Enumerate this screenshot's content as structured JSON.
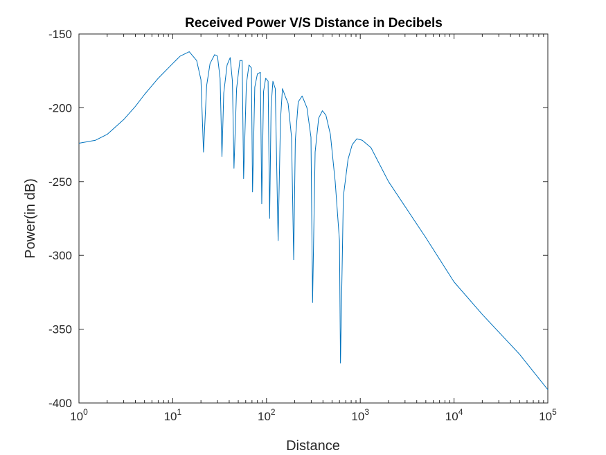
{
  "chart_data": {
    "type": "line",
    "title": "Received Power V/S Distance in Decibels",
    "xlabel": "Distance",
    "ylabel": "Power(in dB)",
    "x_scale": "log",
    "xlim": [
      1,
      100000
    ],
    "ylim": [
      -400,
      -150
    ],
    "grid": false,
    "legend": "none",
    "colors": {
      "line": "#0072BD",
      "axes": "#262626",
      "background": "#ffffff"
    },
    "x_ticks": [
      {
        "base": "10",
        "exp": "0"
      },
      {
        "base": "10",
        "exp": "1"
      },
      {
        "base": "10",
        "exp": "2"
      },
      {
        "base": "10",
        "exp": "3"
      },
      {
        "base": "10",
        "exp": "4"
      },
      {
        "base": "10",
        "exp": "5"
      }
    ],
    "y_ticks": [
      "-150",
      "-200",
      "-250",
      "-300",
      "-350",
      "-400"
    ],
    "series": [
      {
        "x": [
          1,
          1.5,
          2,
          3,
          4,
          5,
          7,
          10,
          12,
          15,
          18,
          20,
          21.3,
          23,
          25,
          28,
          30,
          32,
          33.5,
          35,
          38,
          41,
          43.3,
          45,
          48,
          52,
          55,
          57,
          61,
          65,
          69,
          71,
          75,
          80,
          86,
          89,
          93,
          98,
          104,
          108,
          112,
          117,
          124,
          133,
          141,
          148,
          158,
          170,
          185,
          195,
          203,
          218,
          240,
          270,
          298,
          310,
          330,
          360,
          395,
          430,
          480,
          540,
          600,
          615,
          660,
          740,
          820,
          920,
          1050,
          1300,
          2000,
          5000,
          10000,
          20000,
          50000,
          100000
        ],
        "y": [
          -224,
          -222,
          -218,
          -208,
          -199,
          -191,
          -180,
          -170,
          -165,
          -162,
          -168,
          -181,
          -230,
          -185,
          -170,
          -164,
          -165,
          -180,
          -233,
          -190,
          -171,
          -166,
          -182,
          -241,
          -187,
          -168,
          -168,
          -248,
          -184,
          -171,
          -173,
          -257,
          -186,
          -177,
          -176,
          -265,
          -189,
          -180,
          -182,
          -275,
          -199,
          -182,
          -187,
          -290,
          -208,
          -187,
          -192,
          -197,
          -220,
          -303,
          -222,
          -196,
          -192,
          -200,
          -220,
          -332,
          -230,
          -207,
          -202,
          -205,
          -218,
          -250,
          -290,
          -373,
          -260,
          -235,
          -225,
          -221,
          -222,
          -227,
          -250,
          -288,
          -318,
          -340,
          -367,
          -391
        ]
      }
    ]
  }
}
